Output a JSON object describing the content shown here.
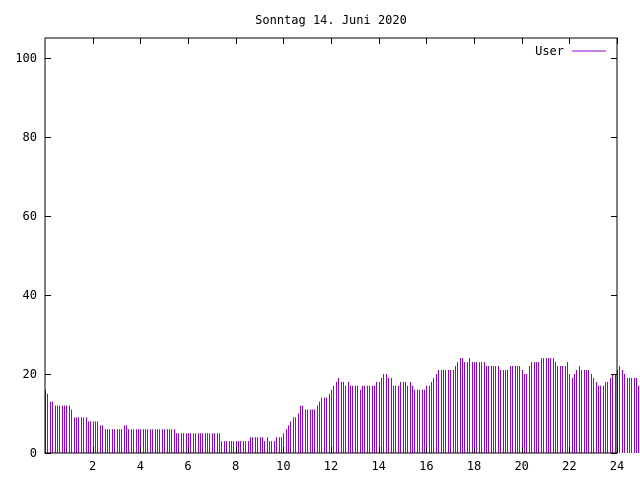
{
  "chart_data": {
    "type": "bar",
    "title": "Sonntag 14. Juni 2020",
    "xlabel": "",
    "ylabel": "",
    "xlim": [
      0,
      24
    ],
    "ylim": [
      0,
      105
    ],
    "x_ticks": [
      2,
      4,
      6,
      8,
      10,
      12,
      14,
      16,
      18,
      20,
      22,
      24
    ],
    "y_ticks": [
      0,
      20,
      40,
      60,
      80,
      100
    ],
    "grid": false,
    "legend_position": "top-right",
    "series": [
      {
        "name": "User",
        "color": "#9400d3",
        "x_step_hours": 0.1,
        "values": [
          16,
          15,
          13,
          13,
          12,
          12,
          12,
          12,
          12,
          12,
          12,
          11,
          9,
          9,
          9,
          9,
          9,
          9,
          8,
          8,
          8,
          8,
          8,
          7,
          7,
          6,
          6,
          6,
          6,
          6,
          6,
          6,
          6,
          7,
          7,
          6,
          6,
          6,
          6,
          6,
          6,
          6,
          6,
          6,
          6,
          6,
          6,
          6,
          6,
          6,
          6,
          6,
          6,
          6,
          6,
          5,
          5,
          5,
          5,
          5,
          5,
          5,
          5,
          5,
          5,
          5,
          5,
          5,
          5,
          5,
          5,
          5,
          5,
          5,
          3,
          3,
          3,
          3,
          3,
          3,
          3,
          3,
          3,
          3,
          3,
          3,
          4,
          4,
          4,
          4,
          4,
          4,
          3,
          4,
          3,
          3,
          3,
          4,
          4,
          4,
          5,
          6,
          7,
          8,
          9,
          9,
          10,
          12,
          12,
          11,
          11,
          11,
          11,
          11,
          12,
          13,
          14,
          14,
          14,
          15,
          16,
          17,
          18,
          19,
          18,
          18,
          17,
          18,
          17,
          17,
          17,
          17,
          16,
          17,
          17,
          17,
          17,
          17,
          17,
          18,
          18,
          19,
          20,
          20,
          19,
          19,
          17,
          17,
          17,
          18,
          18,
          18,
          17,
          18,
          17,
          16,
          16,
          16,
          16,
          16,
          17,
          17,
          18,
          19,
          20,
          21,
          21,
          21,
          21,
          21,
          21,
          21,
          22,
          23,
          24,
          24,
          23,
          23,
          24,
          23,
          23,
          23,
          23,
          23,
          23,
          22,
          22,
          22,
          22,
          22,
          22,
          21,
          21,
          21,
          21,
          22,
          22,
          22,
          22,
          22,
          21,
          20,
          20,
          22,
          23,
          23,
          23,
          23,
          24,
          24,
          24,
          24,
          24,
          24,
          23,
          22,
          22,
          22,
          22,
          23,
          20,
          19,
          20,
          21,
          22,
          21,
          21,
          21,
          21,
          20,
          19,
          18,
          17,
          17,
          17,
          18,
          18,
          19,
          20,
          20,
          21,
          22,
          21,
          20,
          19,
          19,
          19,
          19,
          19,
          17,
          17
        ]
      }
    ]
  }
}
